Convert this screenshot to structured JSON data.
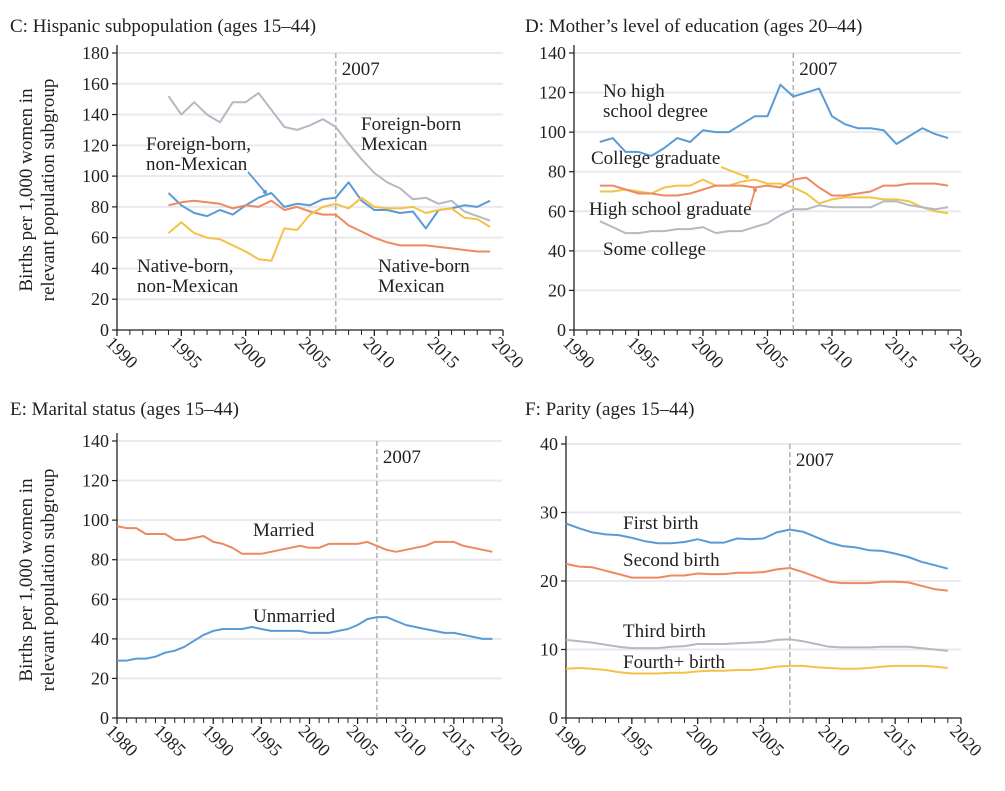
{
  "colors": {
    "blue": "#5b9bd5",
    "orange": "#ec8a62",
    "gray": "#b5b9c2",
    "yellow": "#f4c245",
    "grid": "#e9e9ee",
    "marker": "#b0b0b0"
  },
  "chart_data": [
    {
      "id": "C",
      "type": "line",
      "title": "C: Hispanic subpopulation (ages 15–44)",
      "ylabel": [
        "Births per 1,000 women in",
        "relevant population subgroup"
      ],
      "xlim": [
        1990,
        2020
      ],
      "ylim": [
        0,
        180
      ],
      "ystep": 20,
      "xticks": [
        "1990",
        "1995",
        "2000",
        "2005",
        "2010",
        "2015",
        "2020"
      ],
      "yticks": [
        "0",
        "20",
        "40",
        "60",
        "80",
        "100",
        "120",
        "140",
        "160",
        "180"
      ],
      "marker_label": "2007",
      "marker_x": 2007,
      "grid": true,
      "x": [
        1994,
        1995,
        1996,
        1997,
        1998,
        1999,
        2000,
        2001,
        2002,
        2003,
        2004,
        2005,
        2006,
        2007,
        2008,
        2009,
        2010,
        2011,
        2012,
        2013,
        2014,
        2015,
        2016,
        2017,
        2018,
        2019
      ],
      "series": [
        {
          "name": "Foreign-born Mexican",
          "label": [
            "Foreign-born",
            "Mexican"
          ],
          "color": "gray",
          "values": [
            152,
            140,
            148,
            140,
            135,
            148,
            148,
            154,
            143,
            132,
            130,
            133,
            137,
            132,
            121,
            111,
            102,
            96,
            92,
            85,
            86,
            82,
            84,
            77,
            74,
            71
          ]
        },
        {
          "name": "Foreign-born, non-Mexican",
          "label": [
            "Foreign-born,",
            "non-Mexican"
          ],
          "color": "blue",
          "values": [
            89,
            81,
            76,
            74,
            78,
            75,
            81,
            86,
            89,
            80,
            82,
            81,
            85,
            86,
            96,
            84,
            78,
            78,
            76,
            77,
            66,
            78,
            79,
            81,
            80,
            84
          ]
        },
        {
          "name": "Native-born Mexican",
          "label": [
            "Native-born",
            "Mexican"
          ],
          "color": "orange",
          "values": [
            81,
            83,
            84,
            83,
            82,
            79,
            81,
            80,
            84,
            78,
            80,
            77,
            75,
            75,
            68,
            64,
            60,
            57,
            55,
            55,
            55,
            54,
            53,
            52,
            51,
            51
          ]
        },
        {
          "name": "Native-born, non-Mexican",
          "label": [
            "Native-born,",
            "non-Mexican"
          ],
          "color": "yellow",
          "values": [
            63,
            70,
            63,
            60,
            59,
            55,
            51,
            46,
            45,
            66,
            65,
            75,
            80,
            82,
            79,
            86,
            80,
            79,
            79,
            80,
            76,
            78,
            79,
            73,
            72,
            67
          ]
        }
      ]
    },
    {
      "id": "D",
      "type": "line",
      "title": "D: Mother’s level of education (ages 20–44)",
      "ylabel": [],
      "xlim": [
        1990,
        2020
      ],
      "ylim": [
        0,
        140
      ],
      "ystep": 20,
      "xticks": [
        "1990",
        "1995",
        "2000",
        "2005",
        "2010",
        "2015",
        "2020"
      ],
      "yticks": [
        "0",
        "20",
        "40",
        "60",
        "80",
        "100",
        "120",
        "140"
      ],
      "marker_label": "2007",
      "marker_x": 2007,
      "grid": true,
      "x": [
        1992,
        1993,
        1994,
        1995,
        1996,
        1997,
        1998,
        1999,
        2000,
        2001,
        2002,
        2003,
        2004,
        2005,
        2006,
        2007,
        2008,
        2009,
        2010,
        2011,
        2012,
        2013,
        2014,
        2015,
        2016,
        2017,
        2018,
        2019
      ],
      "series": [
        {
          "name": "No high school degree",
          "label": [
            "No high",
            "school degree"
          ],
          "color": "blue",
          "values": [
            95,
            97,
            90,
            90,
            88,
            92,
            97,
            95,
            101,
            100,
            100,
            104,
            108,
            108,
            124,
            118,
            120,
            122,
            108,
            104,
            102,
            102,
            101,
            94,
            98,
            102,
            99,
            97
          ]
        },
        {
          "name": "College graduate",
          "label": [
            "College graduate"
          ],
          "color": "yellow",
          "values": [
            70,
            70,
            71,
            70,
            69,
            72,
            73,
            73,
            76,
            73,
            73,
            75,
            76,
            74,
            74,
            72,
            69,
            64,
            66,
            67,
            67,
            67,
            66,
            66,
            65,
            62,
            60,
            59
          ]
        },
        {
          "name": "High school graduate",
          "label": [
            "High school graduate"
          ],
          "color": "orange",
          "values": [
            73,
            73,
            71,
            69,
            69,
            68,
            68,
            69,
            71,
            73,
            73,
            73,
            72,
            73,
            72,
            76,
            77,
            72,
            68,
            68,
            69,
            70,
            73,
            73,
            74,
            74,
            74,
            73
          ]
        },
        {
          "name": "Some college",
          "label": [
            "Some college"
          ],
          "color": "gray",
          "values": [
            55,
            52,
            49,
            49,
            50,
            50,
            51,
            51,
            52,
            49,
            50,
            50,
            52,
            54,
            58,
            61,
            61,
            63,
            62,
            62,
            62,
            62,
            65,
            65,
            63,
            62,
            61,
            62
          ]
        }
      ]
    },
    {
      "id": "E",
      "type": "line",
      "title": "E: Marital status (ages 15–44)",
      "ylabel": [
        "Births per 1,000 women in",
        "relevant population subgroup"
      ],
      "xlim": [
        1980,
        2020
      ],
      "ylim": [
        0,
        140
      ],
      "ystep": 20,
      "xticks": [
        "1980",
        "1985",
        "1990",
        "1995",
        "2000",
        "2005",
        "2010",
        "2015",
        "2020"
      ],
      "yticks": [
        "0",
        "20",
        "40",
        "60",
        "80",
        "100",
        "120",
        "140"
      ],
      "marker_label": "2007",
      "marker_x": 2007,
      "grid": true,
      "x": [
        1980,
        1981,
        1982,
        1983,
        1984,
        1985,
        1986,
        1987,
        1988,
        1989,
        1990,
        1991,
        1992,
        1993,
        1994,
        1995,
        1996,
        1997,
        1998,
        1999,
        2000,
        2001,
        2002,
        2003,
        2004,
        2005,
        2006,
        2007,
        2008,
        2009,
        2010,
        2011,
        2012,
        2013,
        2014,
        2015,
        2016,
        2017,
        2018,
        2019
      ],
      "series": [
        {
          "name": "Married",
          "label": [
            "Married"
          ],
          "color": "orange",
          "values": [
            97,
            96,
            96,
            93,
            93,
            93,
            90,
            90,
            91,
            92,
            89,
            88,
            86,
            83,
            83,
            83,
            84,
            85,
            86,
            87,
            86,
            86,
            88,
            88,
            88,
            88,
            89,
            87,
            85,
            84,
            85,
            86,
            87,
            89,
            89,
            89,
            87,
            86,
            85,
            84
          ]
        },
        {
          "name": "Unmarried",
          "label": [
            "Unmarried"
          ],
          "color": "blue",
          "values": [
            29,
            29,
            30,
            30,
            31,
            33,
            34,
            36,
            39,
            42,
            44,
            45,
            45,
            45,
            46,
            45,
            44,
            44,
            44,
            44,
            43,
            43,
            43,
            44,
            45,
            47,
            50,
            51,
            51,
            49,
            47,
            46,
            45,
            44,
            43,
            43,
            42,
            41,
            40,
            40
          ]
        }
      ]
    },
    {
      "id": "F",
      "type": "line",
      "title": "F: Parity (ages 15–44)",
      "ylabel": [],
      "xlim": [
        1990,
        2020
      ],
      "ylim": [
        0,
        40
      ],
      "ystep": 10,
      "xticks": [
        "1990",
        "1995",
        "2000",
        "2005",
        "2010",
        "2015",
        "2020"
      ],
      "yticks": [
        "0",
        "10",
        "20",
        "30",
        "40"
      ],
      "marker_label": "2007",
      "marker_x": 2007,
      "grid": true,
      "x": [
        1990,
        1991,
        1992,
        1993,
        1994,
        1995,
        1996,
        1997,
        1998,
        1999,
        2000,
        2001,
        2002,
        2003,
        2004,
        2005,
        2006,
        2007,
        2008,
        2009,
        2010,
        2011,
        2012,
        2013,
        2014,
        2015,
        2016,
        2017,
        2018,
        2019
      ],
      "series": [
        {
          "name": "First birth",
          "label": [
            "First birth"
          ],
          "color": "blue",
          "values": [
            28.4,
            27.7,
            27.1,
            26.8,
            26.7,
            26.3,
            25.8,
            25.5,
            25.5,
            25.7,
            26.1,
            25.6,
            25.6,
            26.2,
            26.1,
            26.2,
            27.1,
            27.5,
            27.2,
            26.4,
            25.6,
            25.1,
            24.9,
            24.5,
            24.4,
            24.0,
            23.5,
            22.8,
            22.3,
            21.8
          ]
        },
        {
          "name": "Second birth",
          "label": [
            "Second birth"
          ],
          "color": "orange",
          "values": [
            22.5,
            22.1,
            22.0,
            21.5,
            21.0,
            20.5,
            20.5,
            20.5,
            20.8,
            20.8,
            21.1,
            21.0,
            21.0,
            21.2,
            21.2,
            21.3,
            21.7,
            21.9,
            21.3,
            20.6,
            19.9,
            19.7,
            19.7,
            19.7,
            19.9,
            19.9,
            19.8,
            19.3,
            18.8,
            18.6
          ]
        },
        {
          "name": "Third birth",
          "label": [
            "Third birth"
          ],
          "color": "gray",
          "values": [
            11.4,
            11.2,
            11.0,
            10.7,
            10.4,
            10.2,
            10.2,
            10.2,
            10.4,
            10.5,
            10.8,
            10.8,
            10.8,
            10.9,
            11.0,
            11.1,
            11.4,
            11.5,
            11.2,
            10.8,
            10.4,
            10.3,
            10.3,
            10.3,
            10.4,
            10.4,
            10.4,
            10.2,
            10.0,
            9.8
          ]
        },
        {
          "name": "Fourth+ birth",
          "label": [
            "Fourth+ birth"
          ],
          "color": "yellow",
          "values": [
            7.2,
            7.3,
            7.2,
            7.0,
            6.7,
            6.5,
            6.5,
            6.5,
            6.6,
            6.6,
            6.8,
            6.9,
            6.9,
            7.0,
            7.0,
            7.2,
            7.5,
            7.6,
            7.6,
            7.4,
            7.3,
            7.2,
            7.2,
            7.3,
            7.5,
            7.6,
            7.6,
            7.6,
            7.5,
            7.3
          ]
        }
      ]
    }
  ]
}
